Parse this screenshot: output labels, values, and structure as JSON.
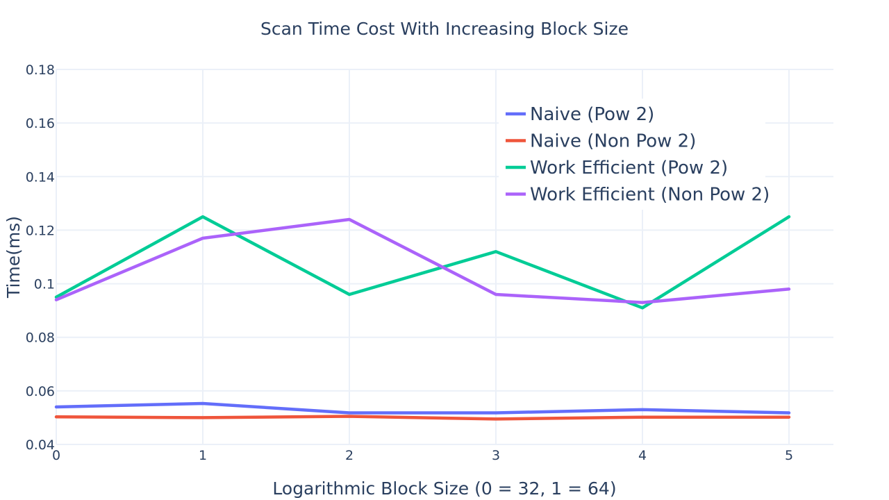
{
  "chart_data": {
    "type": "line",
    "title": "Scan Time Cost With Increasing Block Size",
    "xlabel": "Logarithmic Block Size (0 = 32, 1 = 64)",
    "ylabel": "Time(ms)",
    "x": [
      0,
      1,
      2,
      3,
      4,
      5
    ],
    "xlim": [
      0,
      5.3
    ],
    "ylim": [
      0.04,
      0.18
    ],
    "x_ticks": [
      0,
      1,
      2,
      3,
      4,
      5
    ],
    "y_ticks": [
      0.04,
      0.06,
      0.08,
      0.1,
      0.12,
      0.14,
      0.16,
      0.18
    ],
    "y_tick_labels": [
      "0.04",
      "0.06",
      "0.08",
      "0.1",
      "0.12",
      "0.14",
      "0.16",
      "0.18"
    ],
    "grid": true,
    "legend_position": "top-right",
    "series": [
      {
        "name": "Naive (Pow 2)",
        "color": "#636efa",
        "values": [
          0.054,
          0.0553,
          0.0518,
          0.0518,
          0.053,
          0.0518
        ]
      },
      {
        "name": "Naive (Non Pow 2)",
        "color": "#ef553b",
        "values": [
          0.0503,
          0.05,
          0.0505,
          0.0495,
          0.0502,
          0.0502
        ]
      },
      {
        "name": "Work Efficient (Pow 2)",
        "color": "#00cc96",
        "values": [
          0.095,
          0.125,
          0.096,
          0.112,
          0.091,
          0.125
        ]
      },
      {
        "name": "Work Efficient (Non Pow 2)",
        "color": "#ab63fa",
        "values": [
          0.094,
          0.117,
          0.124,
          0.096,
          0.093,
          0.098
        ]
      }
    ]
  }
}
